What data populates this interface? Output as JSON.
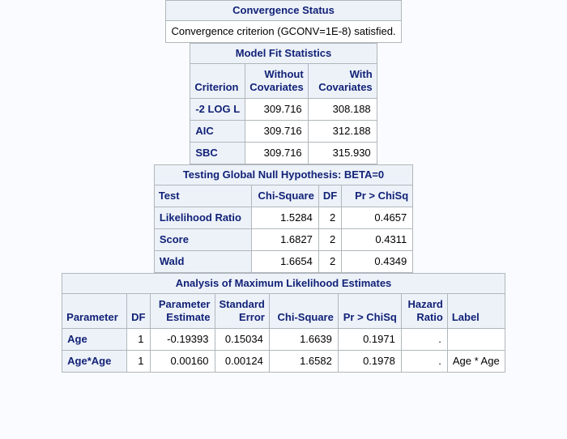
{
  "colors": {
    "page_background": "#fafbfe",
    "header_background": "#edf2f9",
    "header_text": "#112277",
    "data_text": "#000000",
    "data_background": "#ffffff",
    "border": "#b0b7bb"
  },
  "tables": {
    "convergence": {
      "title": "Convergence Status",
      "message": "Convergence criterion (GCONV=1E-8) satisfied."
    },
    "model_fit": {
      "title": "Model Fit Statistics",
      "headers": [
        "Criterion",
        "Without Covariates",
        "With Covariates"
      ],
      "rows": [
        {
          "criterion": "-2 LOG L",
          "without_covariates": "309.716",
          "with_covariates": "308.188"
        },
        {
          "criterion": "AIC",
          "without_covariates": "309.716",
          "with_covariates": "312.188"
        },
        {
          "criterion": "SBC",
          "without_covariates": "309.716",
          "with_covariates": "315.930"
        }
      ]
    },
    "global_null": {
      "title": "Testing Global Null Hypothesis: BETA=0",
      "headers": [
        "Test",
        "Chi-Square",
        "DF",
        "Pr > ChiSq"
      ],
      "rows": [
        {
          "test": "Likelihood Ratio",
          "chi_square": "1.5284",
          "df": "2",
          "pr_chisq": "0.4657"
        },
        {
          "test": "Score",
          "chi_square": "1.6827",
          "df": "2",
          "pr_chisq": "0.4311"
        },
        {
          "test": "Wald",
          "chi_square": "1.6654",
          "df": "2",
          "pr_chisq": "0.4349"
        }
      ]
    },
    "mle": {
      "title": "Analysis of Maximum Likelihood Estimates",
      "headers": [
        "Parameter",
        "DF",
        "Parameter Estimate",
        "Standard Error",
        "Chi-Square",
        "Pr > ChiSq",
        "Hazard Ratio",
        "Label"
      ],
      "rows": [
        {
          "parameter": "Age",
          "df": "1",
          "estimate": "-0.19393",
          "std_error": "0.15034",
          "chi_square": "1.6639",
          "pr_chisq": "0.1971",
          "hazard_ratio": ".",
          "label": ""
        },
        {
          "parameter": "Age*Age",
          "df": "1",
          "estimate": "0.00160",
          "std_error": "0.00124",
          "chi_square": "1.6582",
          "pr_chisq": "0.1978",
          "hazard_ratio": ".",
          "label": "Age * Age"
        }
      ]
    }
  }
}
